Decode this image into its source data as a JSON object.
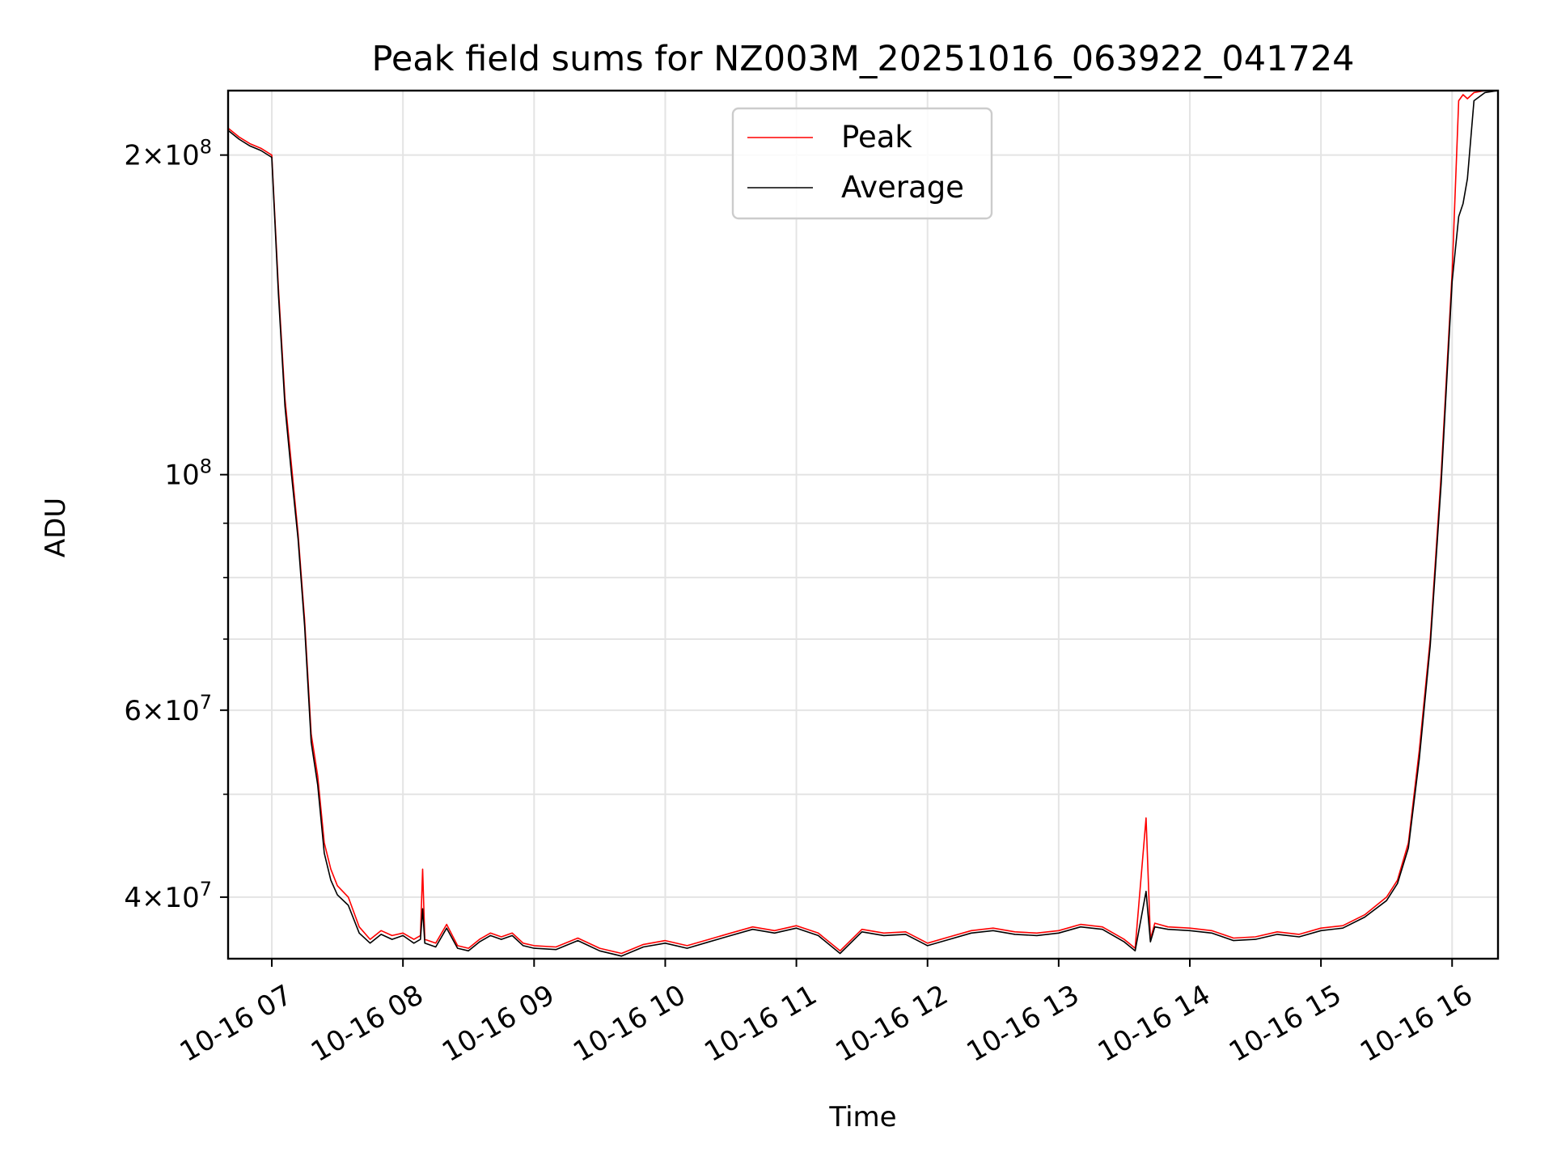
{
  "chart_data": {
    "type": "line",
    "title": "Peak field sums for NZ003M_20251016_063922_041724",
    "xlabel": "Time",
    "ylabel": "ADU",
    "yscale": "log",
    "xlim": [
      "2025-10-16 06:40",
      "2025-10-16 16:21"
    ],
    "ylim": [
      35000000,
      230000000
    ],
    "grid": true,
    "legend": "top-center",
    "x_ticks": [
      "10-16 07",
      "10-16 08",
      "10-16 09",
      "10-16 10",
      "10-16 11",
      "10-16 12",
      "10-16 13",
      "10-16 14",
      "10-16 15",
      "10-16 16"
    ],
    "x_tick_times": [
      "2025-10-16 07:00",
      "2025-10-16 08:00",
      "2025-10-16 09:00",
      "2025-10-16 10:00",
      "2025-10-16 11:00",
      "2025-10-16 12:00",
      "2025-10-16 13:00",
      "2025-10-16 14:00",
      "2025-10-16 15:00",
      "2025-10-16 16:00"
    ],
    "y_major_ticks": [
      {
        "value": 200000000,
        "mantissa": "2",
        "exponent": "8"
      },
      {
        "value": 100000000,
        "mantissa": "",
        "exponent": "8"
      },
      {
        "value": 60000000,
        "mantissa": "6",
        "exponent": "7"
      },
      {
        "value": 40000000,
        "mantissa": "4",
        "exponent": "7"
      }
    ],
    "y_minor_ticks": [
      90000000,
      80000000,
      70000000,
      50000000
    ],
    "series": [
      {
        "name": "Peak",
        "color": "#ff0000",
        "x": [
          "06:40",
          "06:45",
          "06:50",
          "06:55",
          "07:00",
          "07:03",
          "07:06",
          "07:09",
          "07:12",
          "07:15",
          "07:18",
          "07:21",
          "07:24",
          "07:27",
          "07:30",
          "07:35",
          "07:40",
          "07:45",
          "07:50",
          "07:55",
          "08:00",
          "08:05",
          "08:08",
          "08:09",
          "08:10",
          "08:15",
          "08:20",
          "08:25",
          "08:30",
          "08:35",
          "08:40",
          "08:45",
          "08:50",
          "08:55",
          "09:00",
          "09:10",
          "09:20",
          "09:30",
          "09:40",
          "09:50",
          "10:00",
          "10:10",
          "10:20",
          "10:30",
          "10:40",
          "10:50",
          "11:00",
          "11:10",
          "11:20",
          "11:30",
          "11:40",
          "11:50",
          "12:00",
          "12:10",
          "12:20",
          "12:30",
          "12:40",
          "12:50",
          "13:00",
          "13:10",
          "13:20",
          "13:30",
          "13:35",
          "13:40",
          "13:42",
          "13:44",
          "13:50",
          "14:00",
          "14:10",
          "14:20",
          "14:30",
          "14:40",
          "14:50",
          "15:00",
          "15:10",
          "15:20",
          "15:30",
          "15:35",
          "15:40",
          "15:45",
          "15:50",
          "15:55",
          "16:00",
          "16:03",
          "16:05",
          "16:07",
          "16:10",
          "16:15",
          "16:21"
        ],
        "y": [
          212000000,
          208000000,
          205000000,
          203000000,
          200000000,
          150000000,
          118000000,
          102000000,
          88000000,
          73000000,
          57000000,
          52000000,
          45000000,
          42500000,
          41000000,
          40000000,
          37500000,
          36500000,
          37200000,
          36800000,
          37000000,
          36500000,
          36800000,
          42500000,
          36500000,
          36200000,
          37700000,
          36000000,
          35800000,
          36500000,
          37000000,
          36700000,
          37000000,
          36200000,
          36000000,
          35900000,
          36600000,
          35800000,
          35400000,
          36100000,
          36400000,
          36000000,
          36500000,
          37000000,
          37500000,
          37200000,
          37600000,
          37000000,
          35600000,
          37300000,
          37000000,
          37100000,
          36200000,
          36700000,
          37200000,
          37400000,
          37100000,
          37000000,
          37200000,
          37700000,
          37500000,
          36500000,
          35800000,
          47500000,
          36500000,
          37800000,
          37500000,
          37400000,
          37200000,
          36600000,
          36700000,
          37100000,
          36900000,
          37400000,
          37600000,
          38500000,
          40000000,
          41500000,
          45000000,
          55000000,
          70000000,
          100000000,
          155000000,
          225000000,
          228000000,
          226000000,
          229000000,
          230000000,
          230000000
        ]
      },
      {
        "name": "Average",
        "color": "#000000",
        "x": [
          "06:40",
          "06:45",
          "06:50",
          "06:55",
          "07:00",
          "07:03",
          "07:06",
          "07:09",
          "07:12",
          "07:15",
          "07:18",
          "07:21",
          "07:24",
          "07:27",
          "07:30",
          "07:35",
          "07:40",
          "07:45",
          "07:50",
          "07:55",
          "08:00",
          "08:05",
          "08:08",
          "08:09",
          "08:10",
          "08:15",
          "08:20",
          "08:25",
          "08:30",
          "08:35",
          "08:40",
          "08:45",
          "08:50",
          "08:55",
          "09:00",
          "09:10",
          "09:20",
          "09:30",
          "09:40",
          "09:50",
          "10:00",
          "10:10",
          "10:20",
          "10:30",
          "10:40",
          "10:50",
          "11:00",
          "11:10",
          "11:20",
          "11:30",
          "11:40",
          "11:50",
          "12:00",
          "12:10",
          "12:20",
          "12:30",
          "12:40",
          "12:50",
          "13:00",
          "13:10",
          "13:20",
          "13:30",
          "13:35",
          "13:40",
          "13:42",
          "13:44",
          "13:50",
          "14:00",
          "14:10",
          "14:20",
          "14:30",
          "14:40",
          "14:50",
          "15:00",
          "15:10",
          "15:20",
          "15:30",
          "15:35",
          "15:40",
          "15:45",
          "15:50",
          "15:55",
          "16:00",
          "16:03",
          "16:05",
          "16:07",
          "16:10",
          "16:15",
          "16:21"
        ],
        "y": [
          211000000,
          207000000,
          204000000,
          202000000,
          199000000,
          148000000,
          116000000,
          100000000,
          87000000,
          72000000,
          56000000,
          51000000,
          44000000,
          41500000,
          40200000,
          39300000,
          37000000,
          36200000,
          36900000,
          36500000,
          36800000,
          36200000,
          36500000,
          39000000,
          36200000,
          35900000,
          37400000,
          35800000,
          35600000,
          36300000,
          36800000,
          36500000,
          36800000,
          36000000,
          35800000,
          35700000,
          36400000,
          35600000,
          35200000,
          35900000,
          36200000,
          35800000,
          36300000,
          36800000,
          37300000,
          37000000,
          37400000,
          36800000,
          35400000,
          37100000,
          36800000,
          36900000,
          36000000,
          36500000,
          37000000,
          37200000,
          36900000,
          36800000,
          37000000,
          37500000,
          37300000,
          36300000,
          35600000,
          40500000,
          36300000,
          37500000,
          37300000,
          37200000,
          37000000,
          36400000,
          36500000,
          36900000,
          36700000,
          37200000,
          37400000,
          38300000,
          39700000,
          41200000,
          44500000,
          54000000,
          69000000,
          98000000,
          152000000,
          175000000,
          180000000,
          190000000,
          225000000,
          229000000,
          230000000
        ]
      }
    ]
  }
}
